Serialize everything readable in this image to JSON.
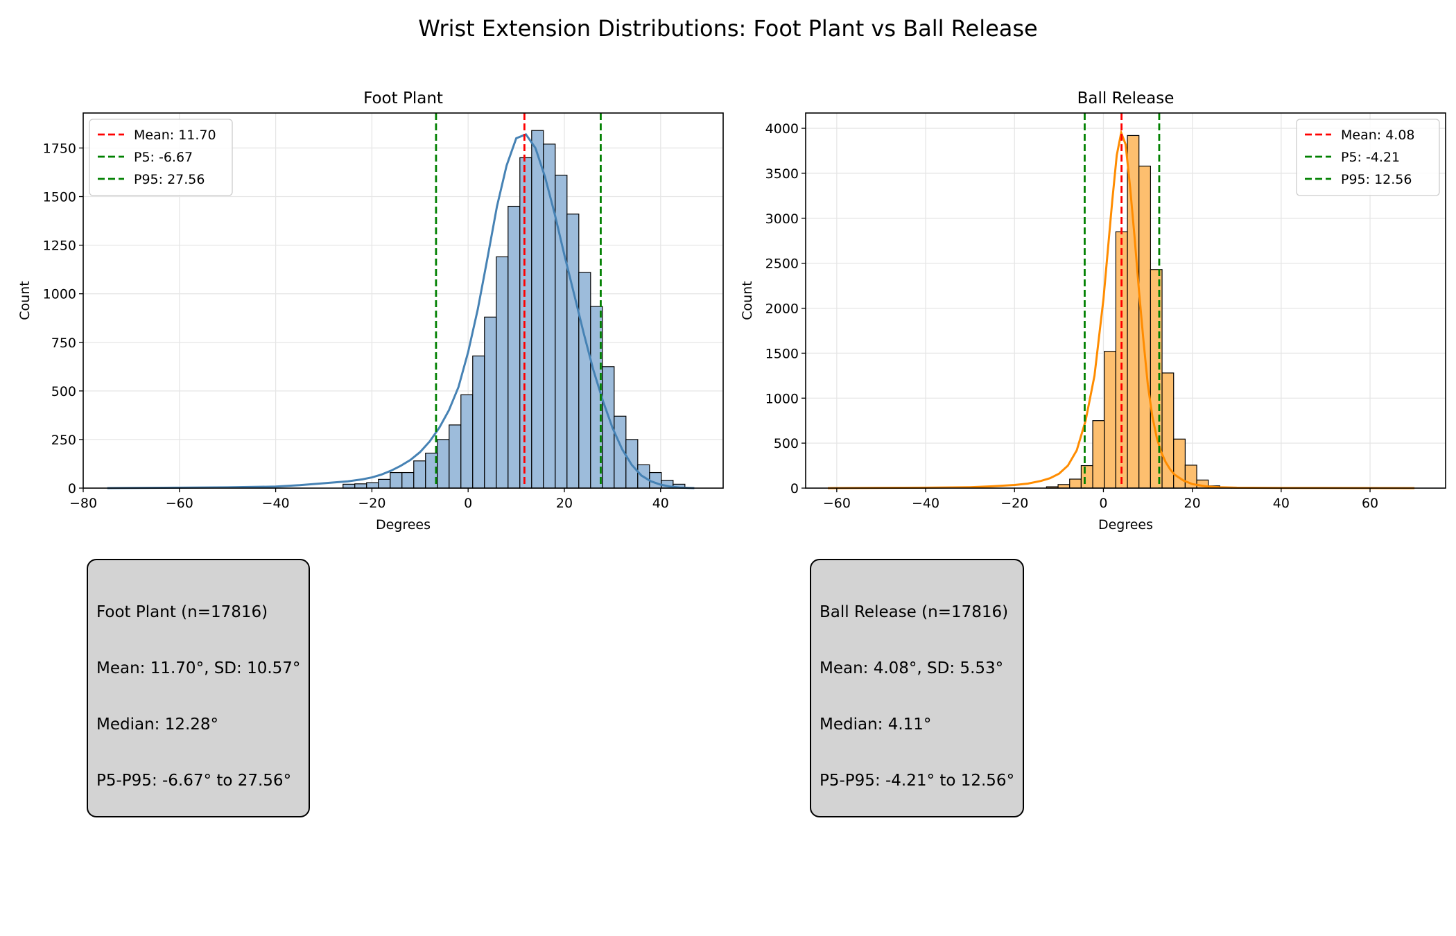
{
  "figure": {
    "title": "Wrist Extension Distributions: Foot Plant vs Ball Release"
  },
  "colors": {
    "foot_plant_bar": "#9dbcdb",
    "foot_plant_line": "#4682b4",
    "ball_release_bar": "#fdbf6f",
    "ball_release_line": "#ff8c00",
    "mean_line": "#ff0000",
    "percentile_line": "#008000",
    "stats_box": "#d3d3d3"
  },
  "chart_data": [
    {
      "type": "bar",
      "title": "Foot Plant",
      "xlabel": "Degrees",
      "ylabel": "Count",
      "xlim": [
        -80,
        53
      ],
      "ylim": [
        0,
        1930
      ],
      "xticks": [
        -80,
        -60,
        -40,
        -20,
        0,
        20,
        40
      ],
      "yticks": [
        0,
        250,
        500,
        750,
        1000,
        1250,
        1500,
        1750
      ],
      "grid": true,
      "legend_position": "top-left",
      "bin_start": -75,
      "bin_width": 2.45,
      "values": [
        0,
        0,
        0,
        0,
        0,
        0,
        0,
        0,
        0,
        0,
        0,
        0,
        0,
        0,
        0,
        0,
        0,
        0,
        0,
        0,
        20,
        22,
        28,
        45,
        80,
        80,
        140,
        180,
        250,
        325,
        480,
        680,
        880,
        1190,
        1450,
        1700,
        1840,
        1770,
        1610,
        1410,
        1110,
        935,
        625,
        370,
        250,
        120,
        80,
        40,
        20
      ],
      "kde_x": [
        -75,
        -60,
        -50,
        -40,
        -35,
        -30,
        -25,
        -22,
        -20,
        -18,
        -16,
        -14,
        -12,
        -10,
        -8,
        -6,
        -4,
        -2,
        0,
        2,
        4,
        6,
        8,
        10,
        12,
        14,
        16,
        18,
        20,
        22,
        24,
        26,
        28,
        30,
        32,
        34,
        36,
        38,
        40,
        42,
        44,
        47
      ],
      "kde_y": [
        0,
        2,
        4,
        8,
        15,
        25,
        35,
        45,
        55,
        70,
        90,
        115,
        145,
        185,
        240,
        310,
        400,
        520,
        700,
        920,
        1180,
        1450,
        1660,
        1800,
        1820,
        1750,
        1600,
        1410,
        1200,
        1000,
        800,
        610,
        450,
        310,
        200,
        120,
        65,
        35,
        18,
        8,
        3,
        0
      ],
      "lines": [
        {
          "label": "Mean: 11.70",
          "value": 11.7,
          "kind": "mean"
        },
        {
          "label": "P5: -6.67",
          "value": -6.67,
          "kind": "percentile"
        },
        {
          "label": "P95: 27.56",
          "value": 27.56,
          "kind": "percentile"
        }
      ]
    },
    {
      "type": "bar",
      "title": "Ball Release",
      "xlabel": "Degrees",
      "ylabel": "Count",
      "xlim": [
        -67,
        77
      ],
      "ylim": [
        0,
        4170
      ],
      "xticks": [
        -60,
        -40,
        -20,
        0,
        20,
        40,
        60
      ],
      "yticks": [
        0,
        500,
        1000,
        1500,
        2000,
        2500,
        3000,
        3500,
        4000
      ],
      "grid": true,
      "legend_position": "top-right",
      "bin_start": -62.2,
      "bin_width": 2.6,
      "values": [
        0,
        0,
        0,
        0,
        0,
        0,
        0,
        0,
        0,
        0,
        0,
        0,
        0,
        0,
        0,
        0,
        0,
        0,
        0,
        15,
        40,
        100,
        250,
        750,
        1520,
        2850,
        3920,
        3580,
        2430,
        1280,
        545,
        255,
        90,
        25,
        10,
        5,
        0,
        0,
        0,
        0,
        0,
        0,
        0,
        0,
        0,
        0,
        0,
        0,
        0,
        0,
        0,
        0
      ],
      "kde_x": [
        -62,
        -40,
        -30,
        -25,
        -20,
        -17,
        -14,
        -12,
        -10,
        -8,
        -6,
        -4,
        -2,
        0,
        1,
        2,
        3,
        4,
        5,
        6,
        7,
        8,
        9,
        10,
        11,
        12,
        13,
        14,
        15,
        16,
        18,
        20,
        23,
        26,
        30,
        40,
        70
      ],
      "kde_y": [
        0,
        5,
        10,
        20,
        35,
        50,
        80,
        110,
        160,
        250,
        420,
        750,
        1250,
        2100,
        2650,
        3200,
        3700,
        3950,
        3820,
        3350,
        2800,
        2200,
        1650,
        1150,
        800,
        560,
        400,
        290,
        210,
        150,
        85,
        45,
        20,
        10,
        5,
        2,
        0
      ],
      "lines": [
        {
          "label": "Mean: 4.08",
          "value": 4.08,
          "kind": "mean"
        },
        {
          "label": "P5: -4.21",
          "value": -4.21,
          "kind": "percentile"
        },
        {
          "label": "P95: 12.56",
          "value": 12.56,
          "kind": "percentile"
        }
      ]
    }
  ],
  "stats": [
    {
      "line1": "Foot Plant (n=17816)",
      "line2": "Mean: 11.70°, SD: 10.57°",
      "line3": "Median: 12.28°",
      "line4": "P5-P95: -6.67° to 27.56°"
    },
    {
      "line1": "Ball Release (n=17816)",
      "line2": "Mean: 4.08°, SD: 5.53°",
      "line3": "Median: 4.11°",
      "line4": "P5-P95: -4.21° to 12.56°"
    }
  ]
}
